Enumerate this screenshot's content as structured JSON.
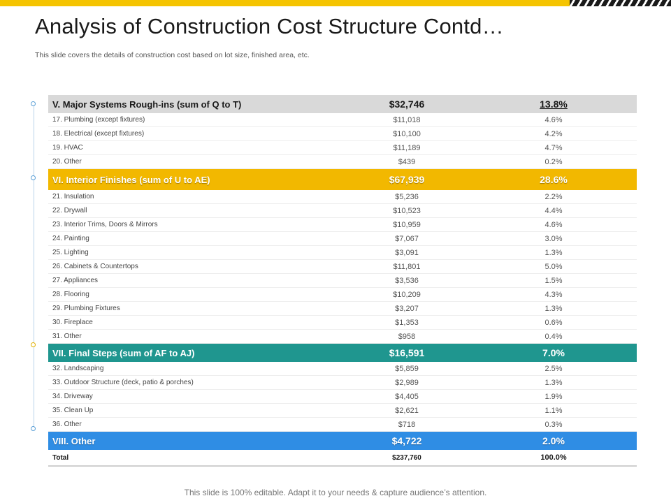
{
  "title": "Analysis of Construction Cost Structure Contd…",
  "subtitle": "This slide covers the details of construction cost based on lot size, finished area, etc.",
  "colors": {
    "accent_yellow": "#f2b800",
    "teal": "#1f968f",
    "blue": "#2f8de4",
    "grey": "#d9d9d9"
  },
  "table": {
    "rows": [
      {
        "type": "header",
        "style": "grey",
        "label": "V. Major Systems Rough-ins (sum of Q to T)",
        "cost": "$32,746",
        "pct": "13.8%"
      },
      {
        "type": "item",
        "label": "17. Plumbing (except fixtures)",
        "cost": "$11,018",
        "pct": "4.6%"
      },
      {
        "type": "item",
        "label": "18. Electrical (except fixtures)",
        "cost": "$10,100",
        "pct": "4.2%"
      },
      {
        "type": "item",
        "label": "19. HVAC",
        "cost": "$11,189",
        "pct": "4.7%"
      },
      {
        "type": "item",
        "label": "20. Other",
        "cost": "$439",
        "pct": "0.2%"
      },
      {
        "type": "header",
        "style": "yellow",
        "label": "VI. Interior Finishes (sum of U to AE)",
        "cost": "$67,939",
        "pct": "28.6%"
      },
      {
        "type": "item",
        "label": "21. Insulation",
        "cost": "$5,236",
        "pct": "2.2%"
      },
      {
        "type": "item",
        "label": "22. Drywall",
        "cost": "$10,523",
        "pct": "4.4%"
      },
      {
        "type": "item",
        "label": "23. Interior Trims, Doors & Mirrors",
        "cost": "$10,959",
        "pct": "4.6%"
      },
      {
        "type": "item",
        "label": "24. Painting",
        "cost": "$7,067",
        "pct": "3.0%"
      },
      {
        "type": "item",
        "label": "25. Lighting",
        "cost": "$3,091",
        "pct": "1.3%"
      },
      {
        "type": "item",
        "label": "26. Cabinets & Countertops",
        "cost": "$11,801",
        "pct": "5.0%"
      },
      {
        "type": "item",
        "label": "27. Appliances",
        "cost": "$3,536",
        "pct": "1.5%"
      },
      {
        "type": "item",
        "label": "28. Flooring",
        "cost": "$10,209",
        "pct": "4.3%"
      },
      {
        "type": "item",
        "label": "29. Plumbing Fixtures",
        "cost": "$3,207",
        "pct": "1.3%"
      },
      {
        "type": "item",
        "label": "30. Fireplace",
        "cost": "$1,353",
        "pct": "0.6%"
      },
      {
        "type": "item",
        "label": "31. Other",
        "cost": "$958",
        "pct": "0.4%"
      },
      {
        "type": "header",
        "style": "teal",
        "label": "VII. Final Steps (sum of AF to AJ)",
        "cost": "$16,591",
        "pct": "7.0%"
      },
      {
        "type": "item",
        "label": "32. Landscaping",
        "cost": "$5,859",
        "pct": "2.5%"
      },
      {
        "type": "item",
        "label": "33. Outdoor Structure (deck, patio & porches)",
        "cost": "$2,989",
        "pct": "1.3%"
      },
      {
        "type": "item",
        "label": "34. Driveway",
        "cost": "$4,405",
        "pct": "1.9%"
      },
      {
        "type": "item",
        "label": "35. Clean Up",
        "cost": "$2,621",
        "pct": "1.1%"
      },
      {
        "type": "item",
        "label": "36. Other",
        "cost": "$718",
        "pct": "0.3%"
      },
      {
        "type": "header",
        "style": "blue",
        "label": "VIII. Other",
        "cost": "$4,722",
        "pct": "2.0%"
      },
      {
        "type": "total",
        "label": "Total",
        "cost": "$237,760",
        "pct": "100.0%"
      }
    ]
  },
  "footer": "This slide is 100% editable. Adapt it to your needs & capture audience’s attention."
}
